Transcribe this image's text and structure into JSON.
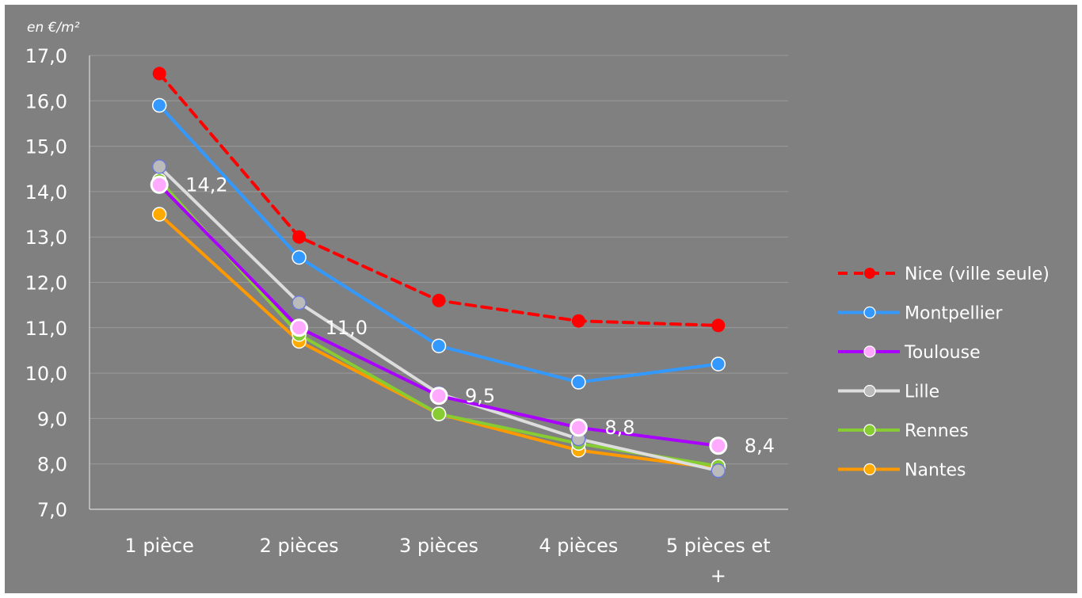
{
  "chart_data": {
    "type": "line",
    "unit_label": "en €/m²",
    "categories": [
      "1 pièce",
      "2 pièces",
      "3 pièces",
      "4 pièces",
      "5 pièces et +"
    ],
    "ylim": [
      7,
      17
    ],
    "yticks": [
      "7,0",
      "8,0",
      "9,0",
      "10,0",
      "11,0",
      "12,0",
      "13,0",
      "14,0",
      "15,0",
      "16,0",
      "17,0"
    ],
    "grid": true,
    "legend_position": "right",
    "series": [
      {
        "name": "Nice (ville seule)",
        "color": "#ff0000",
        "dashed": true,
        "marker_fill": "#ff0000",
        "values": [
          16.6,
          13.0,
          11.6,
          11.15,
          11.05
        ]
      },
      {
        "name": "Montpellier",
        "color": "#3399ff",
        "dashed": false,
        "marker_fill": "#3399ff",
        "values": [
          15.9,
          12.55,
          10.6,
          9.8,
          10.2
        ]
      },
      {
        "name": "Toulouse",
        "color": "#aa00ff",
        "dashed": false,
        "marker_fill": "#ffaaff",
        "values": [
          14.15,
          11.0,
          9.5,
          8.8,
          8.4
        ]
      },
      {
        "name": "Lille",
        "color": "#dddddd",
        "dashed": false,
        "marker_fill": "#bbbbbb",
        "values": [
          14.55,
          11.55,
          9.55,
          8.55,
          7.85
        ]
      },
      {
        "name": "Rennes",
        "color": "#88cc33",
        "dashed": false,
        "marker_fill": "#88cc33",
        "values": [
          14.25,
          10.85,
          9.1,
          8.45,
          7.95
        ]
      },
      {
        "name": "Nantes",
        "color": "#ff9900",
        "dashed": false,
        "marker_fill": "#ffaa00",
        "values": [
          13.5,
          10.7,
          9.1,
          8.3,
          7.9
        ]
      }
    ],
    "data_labels": [
      {
        "series": "Toulouse",
        "index": 0,
        "text": "14,2"
      },
      {
        "series": "Toulouse",
        "index": 1,
        "text": "11,0"
      },
      {
        "series": "Toulouse",
        "index": 2,
        "text": "9,5"
      },
      {
        "series": "Toulouse",
        "index": 3,
        "text": "8,8"
      },
      {
        "series": "Toulouse",
        "index": 4,
        "text": "8,4"
      }
    ]
  }
}
